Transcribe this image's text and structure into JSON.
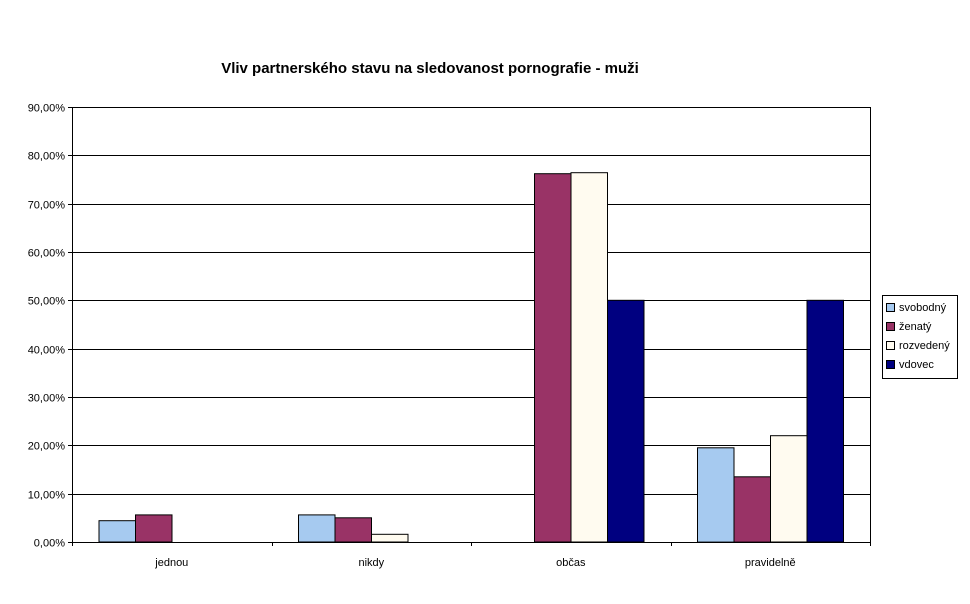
{
  "chart_data": {
    "type": "bar",
    "title": "Vliv partnerského stavu na sledovanost pornografie - muži",
    "xlabel": "",
    "ylabel": "",
    "categories": [
      "jednou",
      "nikdy",
      "občas",
      "pravidelně"
    ],
    "ylim": [
      0,
      0.9
    ],
    "yticks": [
      0,
      0.1,
      0.2,
      0.3,
      0.4,
      0.5,
      0.6,
      0.7,
      0.8,
      0.9
    ],
    "ytick_labels": [
      "0,00%",
      "10,00%",
      "20,00%",
      "30,00%",
      "40,00%",
      "50,00%",
      "60,00%",
      "70,00%",
      "80,00%",
      "90,00%"
    ],
    "grid": true,
    "legend_position": "right",
    "series": [
      {
        "name": "svobodný",
        "color": "#A6CAF0",
        "values": [
          0.044,
          0.056,
          0,
          0.195
        ]
      },
      {
        "name": "ženatý",
        "color": "#993366",
        "values": [
          0.056,
          0.05,
          0.762,
          0.135
        ]
      },
      {
        "name": "rozvedený",
        "color": "#FFFBF0",
        "values": [
          0,
          0.016,
          0.764,
          0.22
        ]
      },
      {
        "name": "vdovec",
        "color": "#000080",
        "values": [
          0,
          0,
          0.5,
          0.5
        ]
      }
    ]
  }
}
